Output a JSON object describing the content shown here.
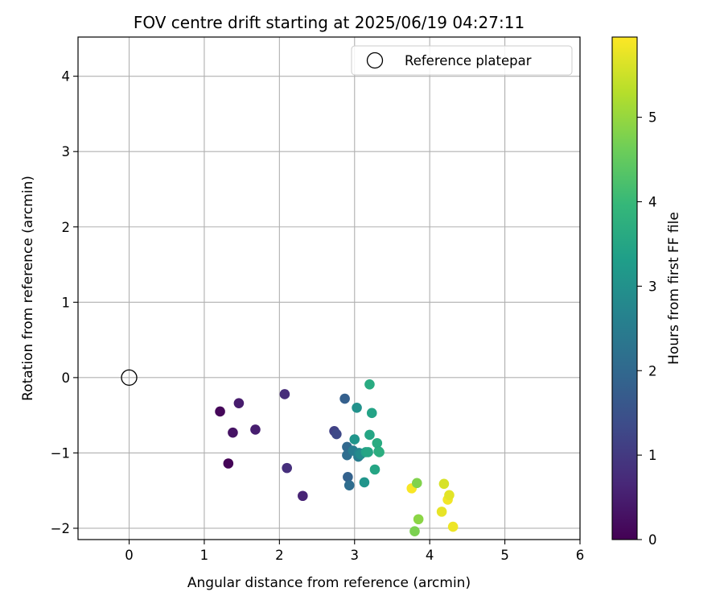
{
  "chart_data": {
    "type": "scatter",
    "title": "FOV centre drift starting at 2025/06/19 04:27:11",
    "xlabel": "Angular distance from reference (arcmin)",
    "ylabel": "Rotation from reference (arcmin)",
    "xlim": [
      -0.68,
      6.0
    ],
    "ylim": [
      -2.15,
      4.52
    ],
    "xticks": [
      0,
      1,
      2,
      3,
      4,
      5,
      6
    ],
    "yticks": [
      -2,
      -1,
      0,
      1,
      2,
      3,
      4
    ],
    "grid": true,
    "legend": {
      "placement": "top-right",
      "entries": [
        "Reference platepar"
      ]
    },
    "reference_point": {
      "name": "Reference platepar",
      "x": 0.0,
      "y": 0.0
    },
    "colorbar": {
      "label": "Hours from first FF file",
      "range": [
        0,
        5.95
      ],
      "ticks": [
        0,
        1,
        2,
        3,
        4,
        5
      ],
      "colormap": "viridis",
      "colormap_stops": [
        "#440154",
        "#482878",
        "#3e4a89",
        "#31688e",
        "#26828e",
        "#1f9e89",
        "#35b779",
        "#6ece58",
        "#b5de2b",
        "#fde725"
      ]
    },
    "points": [
      {
        "x": 1.21,
        "y": -0.45,
        "t": 0.1
      },
      {
        "x": 1.32,
        "y": -1.14,
        "t": 0.05
      },
      {
        "x": 1.38,
        "y": -0.73,
        "t": 0.3
      },
      {
        "x": 1.46,
        "y": -0.34,
        "t": 0.45
      },
      {
        "x": 1.68,
        "y": -0.69,
        "t": 0.5
      },
      {
        "x": 2.07,
        "y": -0.22,
        "t": 0.75
      },
      {
        "x": 2.1,
        "y": -1.2,
        "t": 0.8
      },
      {
        "x": 2.31,
        "y": -1.57,
        "t": 0.6
      },
      {
        "x": 2.73,
        "y": -0.71,
        "t": 1.15
      },
      {
        "x": 2.76,
        "y": -0.75,
        "t": 1.3
      },
      {
        "x": 2.87,
        "y": -0.28,
        "t": 1.8
      },
      {
        "x": 2.9,
        "y": -0.92,
        "t": 2.0
      },
      {
        "x": 2.9,
        "y": -1.03,
        "t": 2.1
      },
      {
        "x": 2.91,
        "y": -1.32,
        "t": 1.85
      },
      {
        "x": 2.93,
        "y": -1.43,
        "t": 2.1
      },
      {
        "x": 2.98,
        "y": -0.97,
        "t": 2.5
      },
      {
        "x": 3.0,
        "y": -0.82,
        "t": 3.1
      },
      {
        "x": 3.03,
        "y": -0.4,
        "t": 3.0
      },
      {
        "x": 3.05,
        "y": -1.05,
        "t": 2.5
      },
      {
        "x": 3.06,
        "y": -1.0,
        "t": 2.7
      },
      {
        "x": 3.08,
        "y": -1.02,
        "t": 2.85
      },
      {
        "x": 3.13,
        "y": -1.39,
        "t": 3.1
      },
      {
        "x": 3.15,
        "y": -0.99,
        "t": 3.4
      },
      {
        "x": 3.18,
        "y": -0.99,
        "t": 3.5
      },
      {
        "x": 3.2,
        "y": -0.09,
        "t": 3.65
      },
      {
        "x": 3.2,
        "y": -0.76,
        "t": 3.5
      },
      {
        "x": 3.23,
        "y": -0.47,
        "t": 3.45
      },
      {
        "x": 3.27,
        "y": -1.22,
        "t": 3.5
      },
      {
        "x": 3.3,
        "y": -0.87,
        "t": 3.65
      },
      {
        "x": 3.32,
        "y": -0.98,
        "t": 3.55
      },
      {
        "x": 3.33,
        "y": -0.99,
        "t": 3.7
      },
      {
        "x": 3.76,
        "y": -1.47,
        "t": 5.9
      },
      {
        "x": 3.8,
        "y": -2.04,
        "t": 4.75
      },
      {
        "x": 3.83,
        "y": -1.4,
        "t": 4.8
      },
      {
        "x": 3.85,
        "y": -1.88,
        "t": 4.9
      },
      {
        "x": 4.16,
        "y": -1.78,
        "t": 5.75
      },
      {
        "x": 4.19,
        "y": -1.41,
        "t": 5.6
      },
      {
        "x": 4.24,
        "y": -1.62,
        "t": 5.85
      },
      {
        "x": 4.26,
        "y": -1.56,
        "t": 5.7
      },
      {
        "x": 4.31,
        "y": -1.98,
        "t": 5.8
      }
    ]
  }
}
